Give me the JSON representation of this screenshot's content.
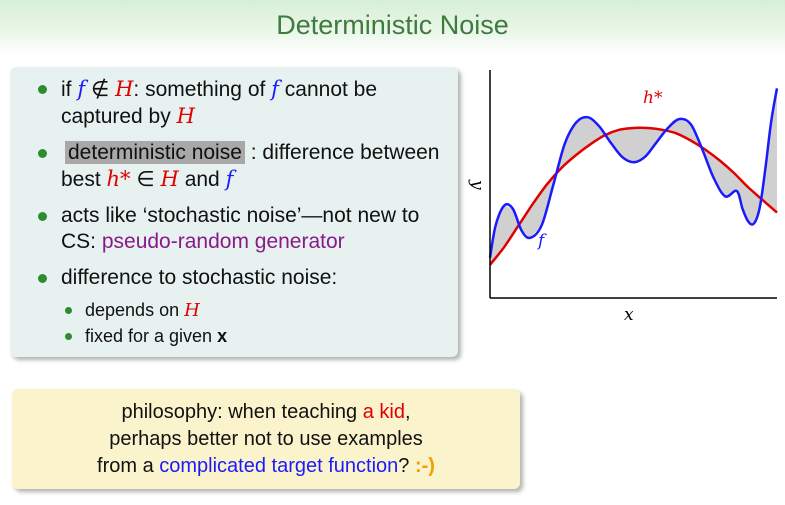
{
  "slide": {
    "title": "Deterministic Noise"
  },
  "bullets": {
    "b1": {
      "t1": "if ",
      "f1": "f",
      "notin": " ∉ ",
      "H1": "H",
      "t2": ": something of ",
      "f2": "f",
      "t3": " cannot be captured by ",
      "H2": "H"
    },
    "b2": {
      "term": "deterministic noise",
      "t1": " : difference between best ",
      "hstar": "h*",
      "in": " ∈ ",
      "H": "H",
      "t2": " and ",
      "f": "f"
    },
    "b3": {
      "t1": "acts like ‘stochastic noise’—not new to CS: ",
      "link": "pseudo-random generator"
    },
    "b4": {
      "t1": "difference to stochastic noise:",
      "sub1": {
        "t1": "depends on ",
        "H": "H"
      },
      "sub2": {
        "t1": "fixed for a given ",
        "x": "x"
      }
    }
  },
  "note": {
    "t1": "philosophy: when teaching ",
    "kid": "a kid",
    "t2": ",",
    "t3": "perhaps better not to use examples",
    "t4": "from a ",
    "target": "complicated target function",
    "t5": "? ",
    "smiley": ":-)"
  },
  "chart_data": {
    "type": "line",
    "title": "",
    "xlabel": "x",
    "ylabel": "y",
    "grid": false,
    "axes": "left-bottom only, no ticks",
    "series": [
      {
        "name": "f",
        "color": "#1a1aff",
        "x": [
          0,
          0.02,
          0.05,
          0.08,
          0.11,
          0.14,
          0.18,
          0.22,
          0.26,
          0.3,
          0.34,
          0.38,
          0.42,
          0.46,
          0.5,
          0.54,
          0.58,
          0.62,
          0.66,
          0.7,
          0.74,
          0.78,
          0.82,
          0.86,
          0.88,
          0.9,
          0.92,
          0.94,
          0.96,
          0.98,
          1.0
        ],
        "y": [
          0.18,
          0.36,
          0.47,
          0.45,
          0.33,
          0.29,
          0.36,
          0.58,
          0.81,
          0.93,
          0.96,
          0.91,
          0.82,
          0.74,
          0.71,
          0.74,
          0.82,
          0.9,
          0.95,
          0.92,
          0.78,
          0.62,
          0.52,
          0.55,
          0.45,
          0.38,
          0.37,
          0.46,
          0.68,
          0.94,
          1.12
        ]
      },
      {
        "name": "h*",
        "color": "#e00000",
        "x": [
          0,
          0.05,
          0.1,
          0.15,
          0.2,
          0.25,
          0.3,
          0.35,
          0.4,
          0.45,
          0.5,
          0.55,
          0.6,
          0.65,
          0.7,
          0.75,
          0.8,
          0.85,
          0.9,
          0.95,
          1.0
        ],
        "y": [
          0.14,
          0.24,
          0.36,
          0.48,
          0.59,
          0.68,
          0.75,
          0.81,
          0.86,
          0.89,
          0.9,
          0.9,
          0.89,
          0.87,
          0.83,
          0.78,
          0.72,
          0.65,
          0.57,
          0.5,
          0.43
        ]
      }
    ],
    "fill": {
      "between": [
        "f",
        "h*"
      ],
      "color": "#d0d0d0"
    },
    "annotations": [
      {
        "text": "h*",
        "near_series": "h*"
      },
      {
        "text": "f",
        "near_series": "f"
      }
    ]
  }
}
